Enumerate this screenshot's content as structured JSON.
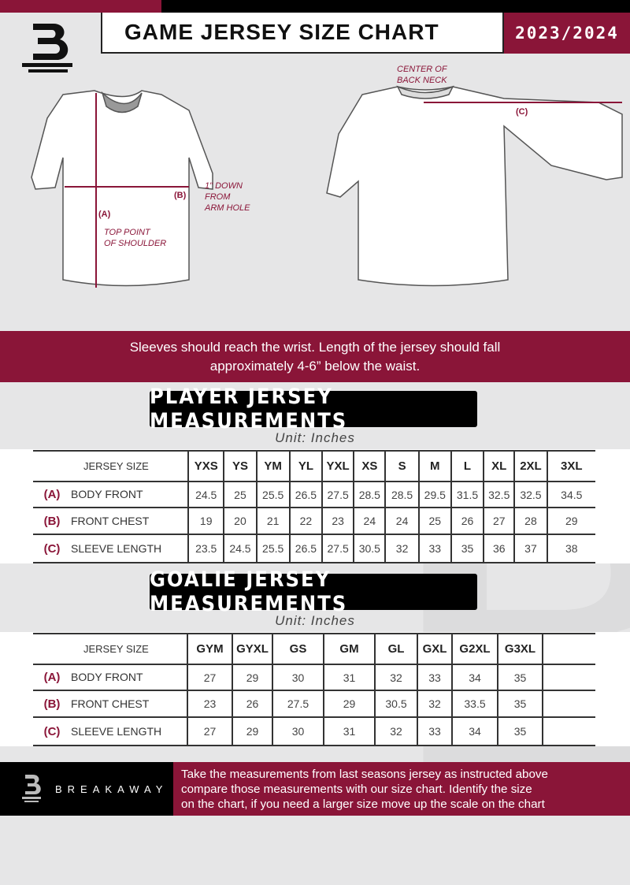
{
  "header": {
    "title": "GAME JERSEY SIZE CHART",
    "season": "2023/2024",
    "logo_letter": "B"
  },
  "diagram": {
    "label_a": "(A)",
    "label_b": "(B)",
    "label_c": "(C)",
    "note_a": [
      "TOP POINT",
      "OF SHOULDER"
    ],
    "note_b": [
      "1\" DOWN",
      "FROM",
      "ARM HOLE"
    ],
    "note_c": [
      "CENTER OF",
      "BACK NECK"
    ]
  },
  "band_text": [
    "Sleeves should reach the wrist. Length of the jersey should fall",
    "approximately 4-6” below the waist."
  ],
  "player": {
    "title": "PLAYER JERSEY MEASUREMENTS",
    "unit": "Unit: Inches",
    "header_label": "JERSEY SIZE",
    "sizes": [
      "YXS",
      "YS",
      "YM",
      "YL",
      "YXL",
      "XS",
      "S",
      "M",
      "L",
      "XL",
      "2XL",
      "3XL"
    ],
    "rows": [
      {
        "letter": "(A)",
        "label": "BODY FRONT",
        "values": [
          "24.5",
          "25",
          "25.5",
          "26.5",
          "27.5",
          "28.5",
          "28.5",
          "29.5",
          "31.5",
          "32.5",
          "32.5",
          "34.5"
        ]
      },
      {
        "letter": "(B)",
        "label": "FRONT CHEST",
        "values": [
          "19",
          "20",
          "21",
          "22",
          "23",
          "24",
          "24",
          "25",
          "26",
          "27",
          "28",
          "29"
        ]
      },
      {
        "letter": "(C)",
        "label": "SLEEVE LENGTH",
        "values": [
          "23.5",
          "24.5",
          "25.5",
          "26.5",
          "27.5",
          "30.5",
          "32",
          "33",
          "35",
          "36",
          "37",
          "38"
        ]
      }
    ]
  },
  "goalie": {
    "title": "GOALIE JERSEY MEASUREMENTS",
    "unit": "Unit: Inches",
    "header_label": "JERSEY SIZE",
    "sizes": [
      "GYM",
      "GYXL",
      "GS",
      "GM",
      "GL",
      "GXL",
      "G2XL",
      "G3XL",
      ""
    ],
    "rows": [
      {
        "letter": "(A)",
        "label": "BODY FRONT",
        "values": [
          "27",
          "29",
          "30",
          "31",
          "32",
          "33",
          "34",
          "35",
          ""
        ]
      },
      {
        "letter": "(B)",
        "label": "FRONT CHEST",
        "values": [
          "23",
          "26",
          "27.5",
          "29",
          "30.5",
          "32",
          "33.5",
          "35",
          ""
        ]
      },
      {
        "letter": "(C)",
        "label": "SLEEVE LENGTH",
        "values": [
          "27",
          "29",
          "30",
          "31",
          "32",
          "33",
          "34",
          "35",
          ""
        ]
      }
    ]
  },
  "footer": {
    "brand": "BREAKAWAY",
    "text": [
      "Take the measurements from last seasons jersey as instructed above",
      "compare those measurements  with our size chart. Identify the size",
      "on the chart, if you need a larger size move up the scale on the chart"
    ]
  },
  "colors": {
    "accent": "#8a1538",
    "black": "#000000",
    "background": "#e6e6e7"
  }
}
